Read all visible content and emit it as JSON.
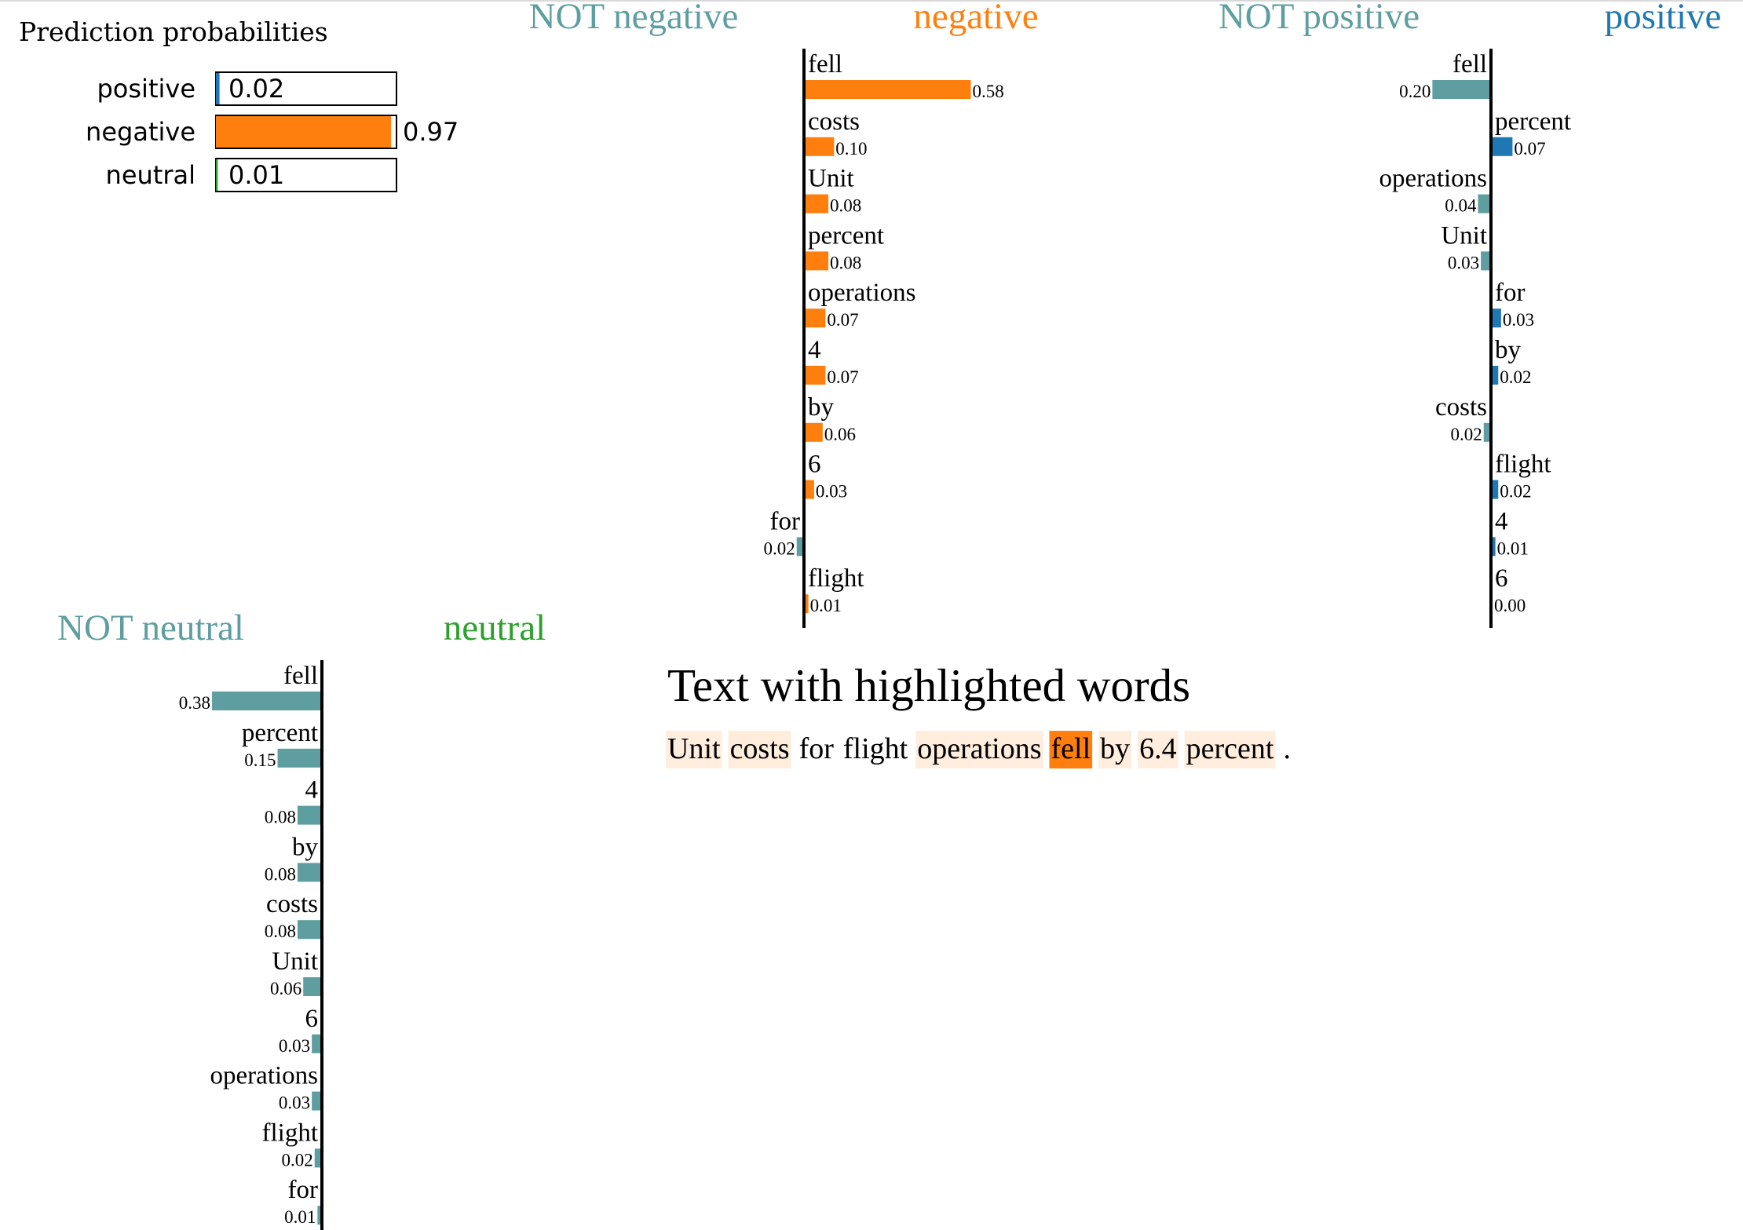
{
  "colors": {
    "positive": "#1f77b4",
    "negative": "#ff7f0e",
    "neutral": "#2ca02c",
    "not_class": "#5f9ea0",
    "axis": "#000000"
  },
  "prediction_probabilities": {
    "title": "Prediction probabilities",
    "items": [
      {
        "label": "positive",
        "value": 0.02,
        "value_text": "0.02",
        "color": "#1f77b4"
      },
      {
        "label": "negative",
        "value": 0.97,
        "value_text": "0.97",
        "color": "#ff7f0e"
      },
      {
        "label": "neutral",
        "value": 0.01,
        "value_text": "0.01",
        "color": "#2ca02c"
      }
    ]
  },
  "chart_data": [
    {
      "type": "bar",
      "class": "negative",
      "not_label": "NOT negative",
      "label": "negative",
      "color": "#ff7f0e",
      "features": [
        {
          "name": "fell",
          "value": 0.58,
          "value_text": "0.58"
        },
        {
          "name": "costs",
          "value": 0.1,
          "value_text": "0.10"
        },
        {
          "name": "Unit",
          "value": 0.08,
          "value_text": "0.08"
        },
        {
          "name": "percent",
          "value": 0.08,
          "value_text": "0.08"
        },
        {
          "name": "operations",
          "value": 0.07,
          "value_text": "0.07"
        },
        {
          "name": "4",
          "value": 0.07,
          "value_text": "0.07"
        },
        {
          "name": "by",
          "value": 0.06,
          "value_text": "0.06"
        },
        {
          "name": "6",
          "value": 0.03,
          "value_text": "0.03"
        },
        {
          "name": "for",
          "value": -0.02,
          "value_text": "0.02"
        },
        {
          "name": "flight",
          "value": 0.01,
          "value_text": "0.01"
        }
      ]
    },
    {
      "type": "bar",
      "class": "positive",
      "not_label": "NOT positive",
      "label": "positive",
      "color": "#1f77b4",
      "features": [
        {
          "name": "fell",
          "value": -0.2,
          "value_text": "0.20"
        },
        {
          "name": "percent",
          "value": 0.07,
          "value_text": "0.07"
        },
        {
          "name": "operations",
          "value": -0.04,
          "value_text": "0.04"
        },
        {
          "name": "Unit",
          "value": -0.03,
          "value_text": "0.03"
        },
        {
          "name": "for",
          "value": 0.03,
          "value_text": "0.03"
        },
        {
          "name": "by",
          "value": 0.02,
          "value_text": "0.02"
        },
        {
          "name": "costs",
          "value": -0.02,
          "value_text": "0.02"
        },
        {
          "name": "flight",
          "value": 0.02,
          "value_text": "0.02"
        },
        {
          "name": "4",
          "value": 0.01,
          "value_text": "0.01"
        },
        {
          "name": "6",
          "value": 0.0,
          "value_text": "0.00"
        }
      ]
    },
    {
      "type": "bar",
      "class": "neutral",
      "not_label": "NOT neutral",
      "label": "neutral",
      "color": "#2ca02c",
      "features": [
        {
          "name": "fell",
          "value": -0.38,
          "value_text": "0.38"
        },
        {
          "name": "percent",
          "value": -0.15,
          "value_text": "0.15"
        },
        {
          "name": "4",
          "value": -0.08,
          "value_text": "0.08"
        },
        {
          "name": "by",
          "value": -0.08,
          "value_text": "0.08"
        },
        {
          "name": "costs",
          "value": -0.08,
          "value_text": "0.08"
        },
        {
          "name": "Unit",
          "value": -0.06,
          "value_text": "0.06"
        },
        {
          "name": "6",
          "value": -0.03,
          "value_text": "0.03"
        },
        {
          "name": "operations",
          "value": -0.03,
          "value_text": "0.03"
        },
        {
          "name": "flight",
          "value": -0.02,
          "value_text": "0.02"
        },
        {
          "name": "for",
          "value": -0.01,
          "value_text": "0.01"
        }
      ]
    }
  ],
  "highlighted_text": {
    "title": "Text with highlighted words",
    "tokens": [
      {
        "text": "Unit",
        "weight": 0.08
      },
      {
        "text": "costs",
        "weight": 0.1
      },
      {
        "text": "for",
        "weight": 0
      },
      {
        "text": "flight",
        "weight": 0
      },
      {
        "text": "operations",
        "weight": 0.07
      },
      {
        "text": "fell",
        "weight": 0.58
      },
      {
        "text": "by",
        "weight": 0.06
      },
      {
        "text": "6.4",
        "weight": 0.05
      },
      {
        "text": "percent",
        "weight": 0.08
      },
      {
        "text": ".",
        "weight": 0
      }
    ]
  }
}
